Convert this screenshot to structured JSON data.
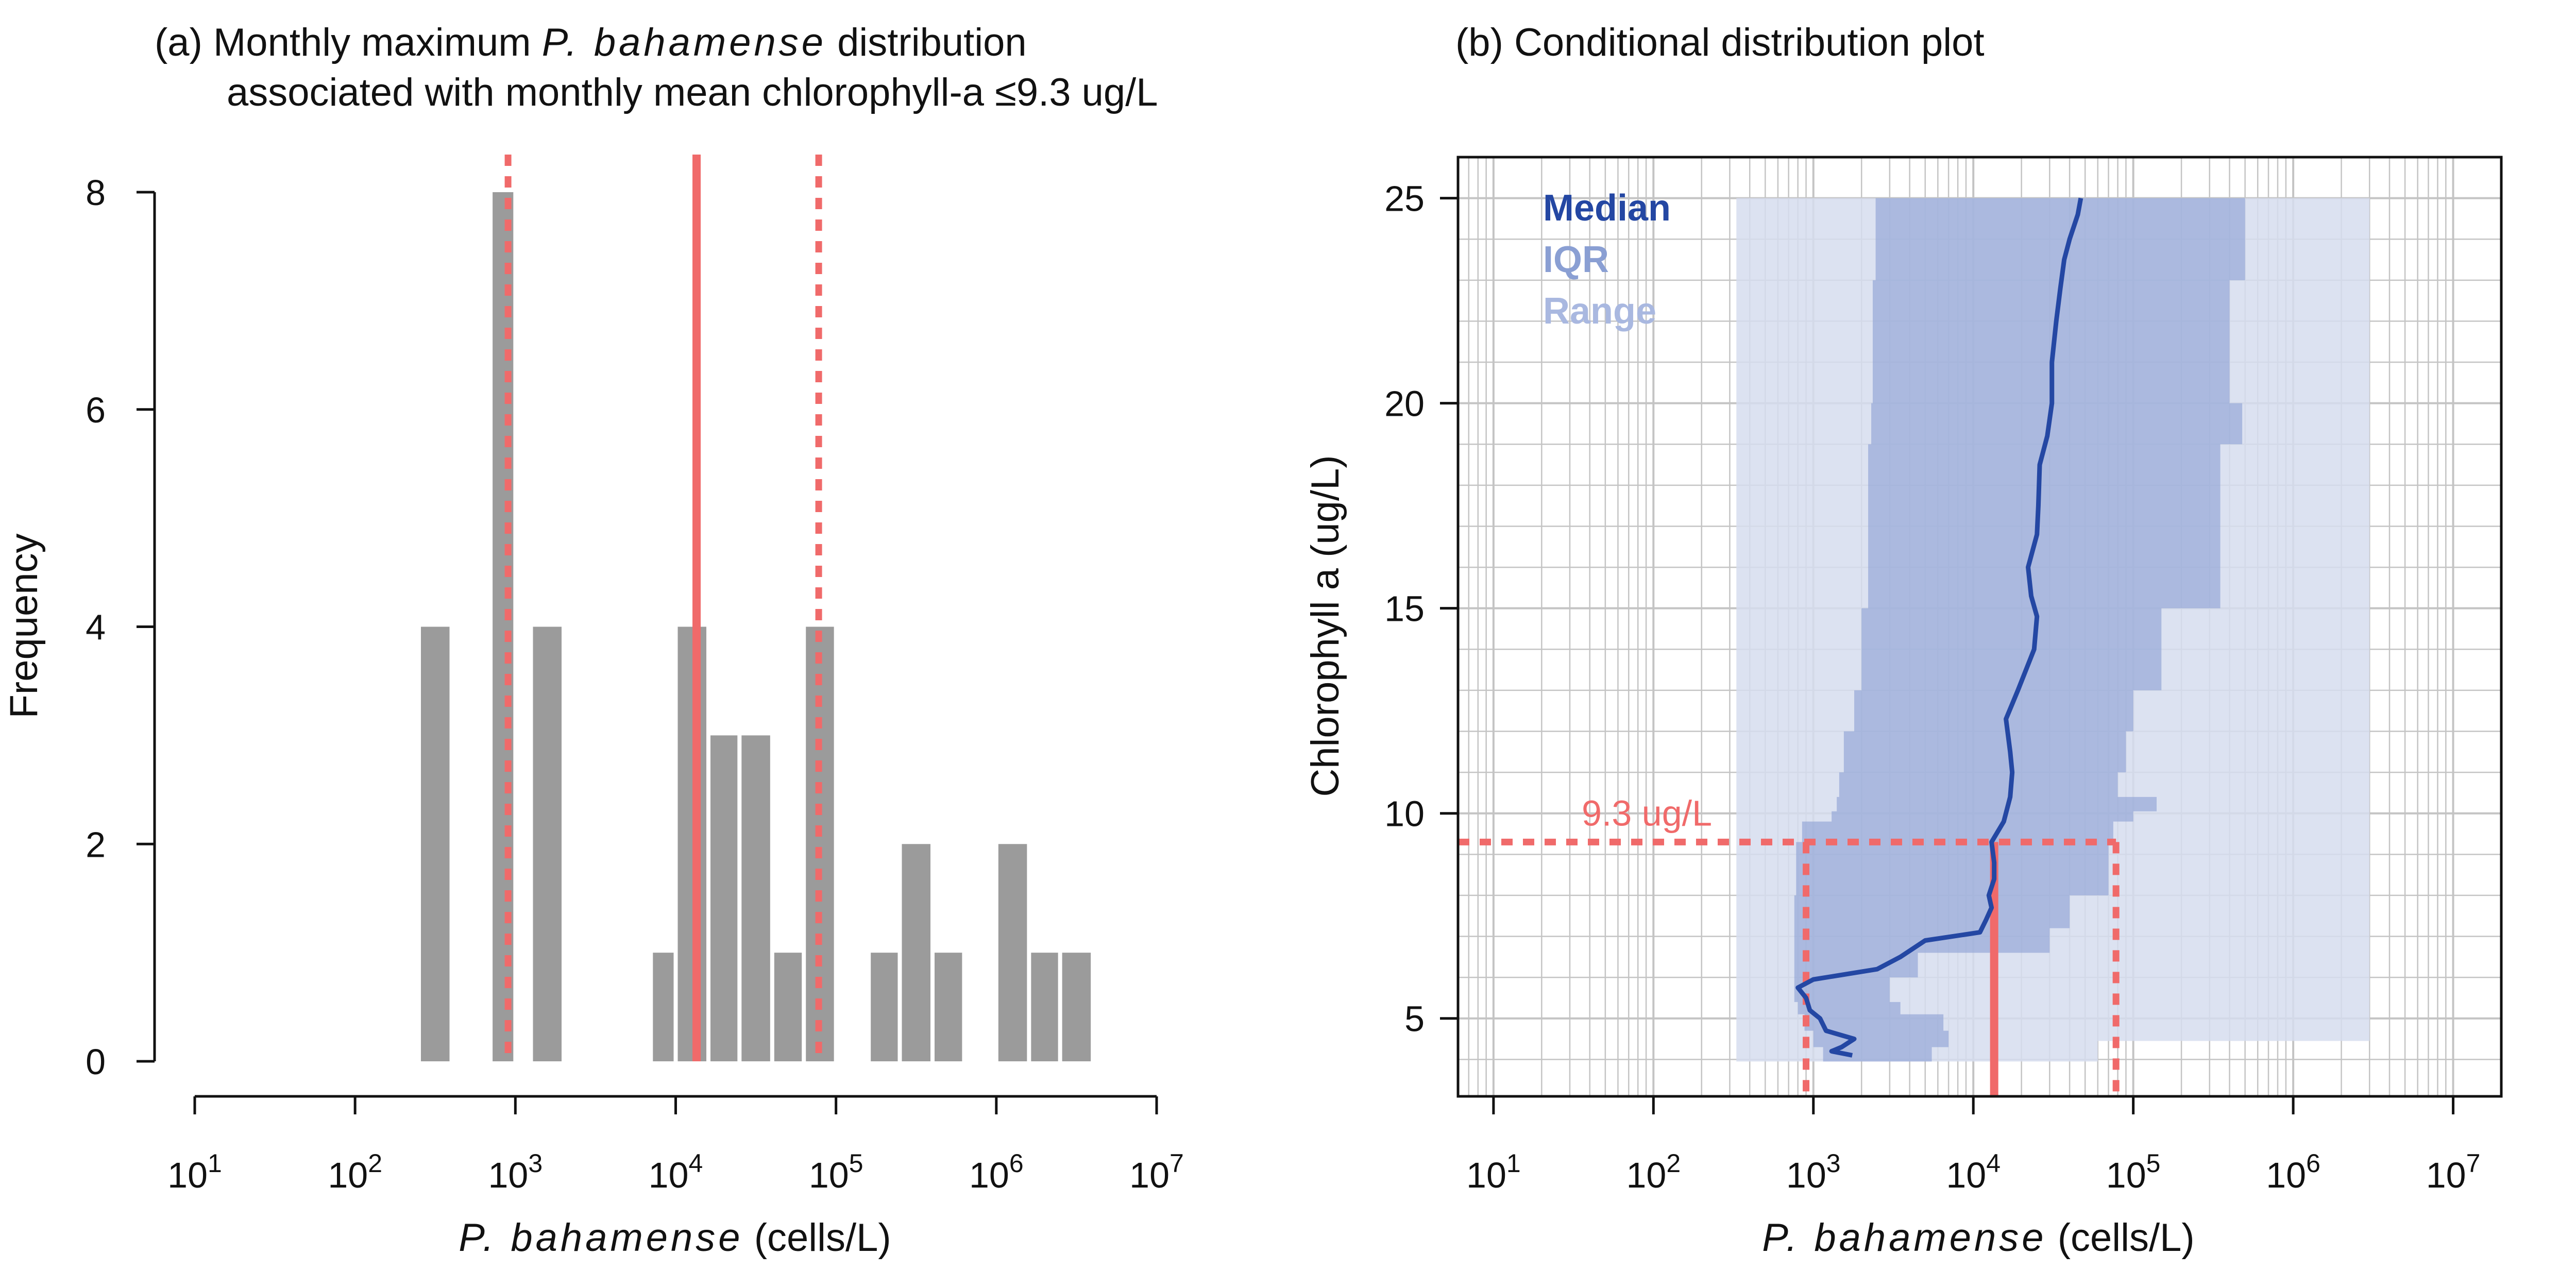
{
  "colors": {
    "bar": "#9b9b9b",
    "red": "#f06a6a",
    "median": "#2447a3",
    "iqr": "#8a9fd3",
    "range": "#d6ddef",
    "grid": "#c4c4c4",
    "axis": "#111111"
  },
  "chart_data": [
    {
      "type": "bar",
      "panel": "a",
      "title": "(a) Monthly maximum P. bahamense distribution",
      "title_prefix": "(a) Monthly maximum ",
      "title_italic": "P. bahamense",
      "title_suffix": " distribution",
      "title_line2": "associated with monthly mean chlorophyll-a ≤9.3 ug/L",
      "xlabel": "P. bahamense (cells/L)",
      "xlabel_italic": "P. bahamense",
      "xlabel_rest": " (cells/L)",
      "ylabel": "Frequency",
      "x_scale": "log10",
      "xlim": [
        10,
        10000000
      ],
      "ylim": [
        0,
        8
      ],
      "x_ticks": [
        {
          "value": 10,
          "base": "10",
          "exp": "1"
        },
        {
          "value": 100,
          "base": "10",
          "exp": "2"
        },
        {
          "value": 1000,
          "base": "10",
          "exp": "3"
        },
        {
          "value": 10000,
          "base": "10",
          "exp": "4"
        },
        {
          "value": 100000,
          "base": "10",
          "exp": "5"
        },
        {
          "value": 1000000,
          "base": "10",
          "exp": "6"
        },
        {
          "value": 10000000,
          "base": "10",
          "exp": "7"
        }
      ],
      "y_ticks": [
        0,
        2,
        4,
        6,
        8
      ],
      "bins": [
        {
          "x0": 250,
          "x1": 400,
          "count": 4
        },
        {
          "x0": 700,
          "x1": 1000,
          "count": 8
        },
        {
          "x0": 1250,
          "x1": 2000,
          "count": 4
        },
        {
          "x0": 7000,
          "x1": 10000,
          "count": 1
        },
        {
          "x0": 10000,
          "x1": 16000,
          "count": 4
        },
        {
          "x0": 16000,
          "x1": 25000,
          "count": 3
        },
        {
          "x0": 25000,
          "x1": 40000,
          "count": 3
        },
        {
          "x0": 40000,
          "x1": 63000,
          "count": 1
        },
        {
          "x0": 63000,
          "x1": 100000,
          "count": 4
        },
        {
          "x0": 160000,
          "x1": 250000,
          "count": 1
        },
        {
          "x0": 250000,
          "x1": 400000,
          "count": 2
        },
        {
          "x0": 400000,
          "x1": 630000,
          "count": 1
        },
        {
          "x0": 1000000,
          "x1": 1600000,
          "count": 2
        },
        {
          "x0": 1600000,
          "x1": 2500000,
          "count": 1
        },
        {
          "x0": 2500000,
          "x1": 4000000,
          "count": 1
        }
      ],
      "reference_lines": [
        {
          "x": 900,
          "style": "dashed"
        },
        {
          "x": 13500,
          "style": "solid"
        },
        {
          "x": 78000,
          "style": "dashed"
        }
      ]
    },
    {
      "type": "area",
      "panel": "b",
      "title": "(b) Conditional distribution plot",
      "xlabel": "P. bahamense (cells/L)",
      "xlabel_italic": "P. bahamense",
      "xlabel_rest": " (cells/L)",
      "ylabel": "Chlorophyll a (ug/L)",
      "x_scale": "log10",
      "xlim": [
        6,
        20000000
      ],
      "ylim": [
        3.1,
        26
      ],
      "grid": true,
      "legend_position": "top-left",
      "legend": [
        "Median",
        "IQR",
        "Range"
      ],
      "x_ticks": [
        {
          "value": 10,
          "base": "10",
          "exp": "1"
        },
        {
          "value": 100,
          "base": "10",
          "exp": "2"
        },
        {
          "value": 1000,
          "base": "10",
          "exp": "3"
        },
        {
          "value": 10000,
          "base": "10",
          "exp": "4"
        },
        {
          "value": 100000,
          "base": "10",
          "exp": "5"
        },
        {
          "value": 1000000,
          "base": "10",
          "exp": "6"
        },
        {
          "value": 10000000,
          "base": "10",
          "exp": "7"
        }
      ],
      "y_ticks": [
        5,
        10,
        15,
        20,
        25
      ],
      "range_band": [
        {
          "y": 3.95,
          "low": 330,
          "high": 60000
        },
        {
          "y": 4.45,
          "low": 330,
          "high": 3000000
        },
        {
          "y": 25,
          "low": 330,
          "high": 3000000
        }
      ],
      "iqr_band": [
        {
          "y": 3.95,
          "low": 1150,
          "high": 5500
        },
        {
          "y": 4.3,
          "low": 1000,
          "high": 7000
        },
        {
          "y": 4.7,
          "low": 880,
          "high": 6500
        },
        {
          "y": 5.1,
          "low": 800,
          "high": 3500
        },
        {
          "y": 5.4,
          "low": 760,
          "high": 3000
        },
        {
          "y": 6.0,
          "low": 760,
          "high": 4500
        },
        {
          "y": 6.6,
          "low": 760,
          "high": 30000
        },
        {
          "y": 7.2,
          "low": 760,
          "high": 40000
        },
        {
          "y": 8.0,
          "low": 780,
          "high": 70000
        },
        {
          "y": 9.3,
          "low": 850,
          "high": 75000
        },
        {
          "y": 9.8,
          "low": 1300,
          "high": 100000
        },
        {
          "y": 10.05,
          "low": 1400,
          "high": 140000
        },
        {
          "y": 10.4,
          "low": 1450,
          "high": 80000
        },
        {
          "y": 11.0,
          "low": 1550,
          "high": 90000
        },
        {
          "y": 12.0,
          "low": 1800,
          "high": 100000
        },
        {
          "y": 13.0,
          "low": 2000,
          "high": 150000
        },
        {
          "y": 15.0,
          "low": 2200,
          "high": 350000
        },
        {
          "y": 19.0,
          "low": 2300,
          "high": 480000
        },
        {
          "y": 20.0,
          "low": 2350,
          "high": 400000
        },
        {
          "y": 23.0,
          "low": 2450,
          "high": 500000
        },
        {
          "y": 25.0,
          "low": 2500,
          "high": 700000
        }
      ],
      "median": [
        {
          "y": 4.1,
          "x": 1750
        },
        {
          "y": 4.2,
          "x": 1300
        },
        {
          "y": 4.3,
          "x": 1500
        },
        {
          "y": 4.5,
          "x": 1800
        },
        {
          "y": 4.7,
          "x": 1200
        },
        {
          "y": 5.0,
          "x": 1100
        },
        {
          "y": 5.2,
          "x": 950
        },
        {
          "y": 5.5,
          "x": 900
        },
        {
          "y": 5.75,
          "x": 800
        },
        {
          "y": 5.95,
          "x": 1000
        },
        {
          "y": 6.2,
          "x": 2500
        },
        {
          "y": 6.5,
          "x": 3500
        },
        {
          "y": 6.9,
          "x": 5000
        },
        {
          "y": 7.1,
          "x": 11000
        },
        {
          "y": 7.4,
          "x": 12000
        },
        {
          "y": 7.7,
          "x": 13000
        },
        {
          "y": 8.0,
          "x": 12500
        },
        {
          "y": 8.4,
          "x": 13500
        },
        {
          "y": 8.8,
          "x": 13500
        },
        {
          "y": 9.3,
          "x": 13000
        },
        {
          "y": 9.8,
          "x": 15500
        },
        {
          "y": 10.4,
          "x": 17000
        },
        {
          "y": 11.0,
          "x": 17500
        },
        {
          "y": 11.5,
          "x": 17000
        },
        {
          "y": 12.3,
          "x": 16000
        },
        {
          "y": 13.0,
          "x": 19000
        },
        {
          "y": 14.0,
          "x": 24000
        },
        {
          "y": 14.8,
          "x": 25000
        },
        {
          "y": 15.3,
          "x": 23000
        },
        {
          "y": 16.0,
          "x": 22000
        },
        {
          "y": 16.8,
          "x": 25000
        },
        {
          "y": 17.5,
          "x": 25500
        },
        {
          "y": 18.5,
          "x": 26000
        },
        {
          "y": 19.2,
          "x": 29000
        },
        {
          "y": 20.0,
          "x": 31000
        },
        {
          "y": 21.0,
          "x": 31000
        },
        {
          "y": 22.0,
          "x": 33000
        },
        {
          "y": 22.8,
          "x": 35000
        },
        {
          "y": 23.5,
          "x": 37000
        },
        {
          "y": 24.0,
          "x": 40000
        },
        {
          "y": 24.6,
          "x": 45000
        },
        {
          "y": 25.0,
          "x": 47000
        }
      ],
      "threshold": {
        "y": 9.3,
        "label": "9.3 ug/L"
      },
      "threshold_verticals": [
        {
          "x": 900,
          "style": "dashed"
        },
        {
          "x": 13500,
          "style": "solid"
        },
        {
          "x": 78000,
          "style": "dashed"
        }
      ]
    }
  ]
}
